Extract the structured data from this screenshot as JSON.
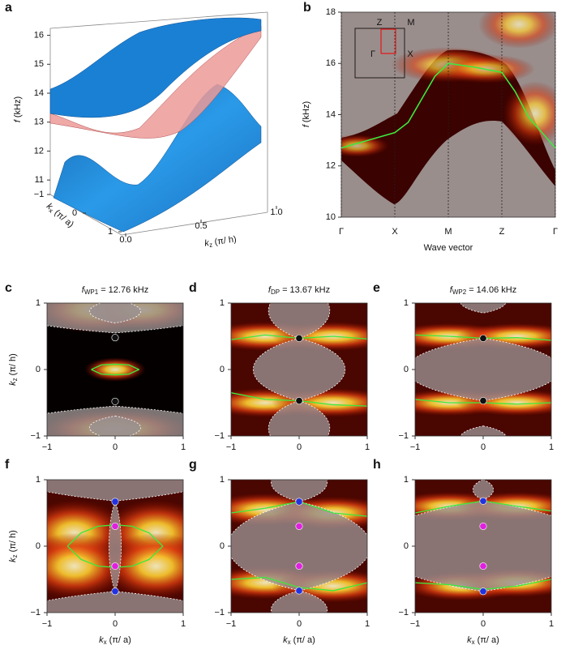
{
  "chart_data": [
    {
      "type": "surface3d",
      "panel": "a",
      "zlabel": {
        "symbol": "f",
        "text": "(kHz)"
      },
      "zlim": [
        10.5,
        16.8
      ],
      "zticks": [
        11,
        12,
        13,
        14,
        15,
        16
      ],
      "xlabel": {
        "symbol": "k",
        "subscript": "x",
        "text": "(π/ a)"
      },
      "xlim": [
        -1,
        1
      ],
      "xticks": [
        {
          "value": -1,
          "label": "−1"
        },
        0,
        1
      ],
      "ylabel": {
        "symbol": "k",
        "subscript": "z",
        "text": "(π/ h)"
      },
      "ylim": [
        0,
        1
      ],
      "yticks": [
        {
          "value": 0,
          "label": "0.0"
        },
        0.5,
        {
          "value": 1,
          "label": "1.0"
        }
      ],
      "colors": [
        "#1a80d4",
        "#ec9a98"
      ]
    },
    {
      "type": "band",
      "panel": "b",
      "ylabel": {
        "symbol": "f",
        "text": "(kHz)"
      },
      "xlabel": "Wave vector",
      "xlim": [
        0,
        4
      ],
      "xticks": [
        {
          "value": 0,
          "label": "Γ"
        },
        {
          "value": 1,
          "label": "X"
        },
        {
          "value": 2,
          "label": "M"
        },
        {
          "value": 3,
          "label": "Z"
        },
        {
          "value": 4,
          "label": "Γ"
        }
      ],
      "ylim": [
        10,
        18
      ],
      "yticks": [
        10,
        12,
        14,
        16,
        18
      ],
      "series": [
        {
          "color": "#3ee83e",
          "x": [
            0,
            0.5,
            1,
            1.25,
            1.5,
            1.75,
            2,
            2.5,
            3,
            3.25,
            3.5,
            4
          ],
          "values": [
            12.7,
            13.0,
            13.3,
            13.7,
            14.6,
            15.5,
            16.0,
            15.85,
            15.65,
            14.9,
            13.9,
            12.7
          ]
        }
      ],
      "inset_labels": [
        "Z",
        "M",
        "Γ",
        "X"
      ]
    },
    {
      "type": "heatmap",
      "panel": "c",
      "title": {
        "symbol": "f",
        "subscript": "WP1",
        "text": "= 12.76 kHz"
      },
      "ylabel": {
        "symbol": "k",
        "subscript": "z",
        "text": "(π/ h)"
      },
      "xlim": [
        -1,
        1
      ],
      "ylim": [
        -1,
        1
      ],
      "xticks": [
        {
          "value": -1,
          "label": "−1"
        },
        0,
        1
      ],
      "yticks": [
        {
          "value": -1,
          "label": "−1"
        },
        0,
        1
      ],
      "lines": [
        {
          "color": "#3ee83e",
          "x": [
            -0.35,
            -0.2,
            0,
            0.2,
            0.35,
            0.2,
            0,
            -0.2,
            -0.35
          ],
          "values": [
            0,
            0.07,
            0.08,
            0.07,
            0,
            -0.07,
            -0.08,
            -0.07,
            0
          ]
        }
      ],
      "points": [
        {
          "color": "#111111",
          "x": [
            0,
            0
          ],
          "values": [
            0.48,
            -0.48
          ]
        }
      ]
    },
    {
      "type": "heatmap",
      "panel": "d",
      "title": {
        "symbol": "f",
        "subscript": "DP",
        "text": "= 13.67 kHz"
      },
      "xlim": [
        -1,
        1
      ],
      "ylim": [
        -1,
        1
      ],
      "xticks": [
        {
          "value": -1,
          "label": "−1"
        },
        0,
        1
      ],
      "yticks": [
        {
          "value": -1,
          "label": "−1"
        },
        0,
        1
      ],
      "lines": [
        {
          "color": "#3ee83e",
          "x": [
            -1,
            -0.5,
            0,
            0.5,
            1
          ],
          "values": [
            0.45,
            0.52,
            0.47,
            0.5,
            0.46
          ]
        },
        {
          "color": "#3ee83e",
          "x": [
            -1,
            -0.5,
            0,
            0.5,
            1
          ],
          "values": [
            -0.35,
            -0.45,
            -0.47,
            -0.53,
            -0.55
          ]
        }
      ],
      "points": [
        {
          "color": "#111111",
          "x": [
            0,
            0
          ],
          "values": [
            0.47,
            -0.47
          ]
        }
      ]
    },
    {
      "type": "heatmap",
      "panel": "e",
      "title": {
        "symbol": "f",
        "subscript": "WP2",
        "text": "= 14.06 kHz"
      },
      "xlim": [
        -1,
        1
      ],
      "ylim": [
        -1,
        1
      ],
      "xticks": [
        {
          "value": -1,
          "label": "−1"
        },
        0,
        1
      ],
      "yticks": [
        {
          "value": -1,
          "label": "−1"
        },
        0,
        1
      ],
      "lines": [
        {
          "color": "#3ee83e",
          "x": [
            -1,
            -0.5,
            0,
            0.5,
            1
          ],
          "values": [
            0.52,
            0.5,
            0.47,
            0.48,
            0.44
          ]
        },
        {
          "color": "#3ee83e",
          "x": [
            -1,
            -0.5,
            0,
            0.5,
            1
          ],
          "values": [
            -0.45,
            -0.5,
            -0.5,
            -0.52,
            -0.5
          ]
        }
      ],
      "points": [
        {
          "color": "#111111",
          "x": [
            0,
            0
          ],
          "values": [
            0.47,
            -0.47
          ]
        }
      ]
    },
    {
      "type": "heatmap",
      "panel": "f",
      "ylabel": {
        "symbol": "k",
        "subscript": "z",
        "text": "(π/ h)"
      },
      "xlabel": {
        "symbol": "k",
        "subscript": "x",
        "text": "(π/ a)"
      },
      "xlim": [
        -1,
        1
      ],
      "ylim": [
        -1,
        1
      ],
      "xticks": [
        {
          "value": -1,
          "label": "−1"
        },
        0,
        1
      ],
      "yticks": [
        {
          "value": -1,
          "label": "−1"
        },
        0,
        1
      ],
      "lines": [
        {
          "color": "#3ee83e",
          "x": [
            -0.7,
            -0.5,
            -0.25,
            0,
            0.25,
            0.5,
            0.7,
            0.5,
            0.25,
            0,
            -0.25,
            -0.5,
            -0.7
          ],
          "values": [
            0,
            0.2,
            0.3,
            0.32,
            0.3,
            0.2,
            0,
            -0.2,
            -0.3,
            -0.32,
            -0.3,
            -0.2,
            0
          ]
        }
      ],
      "points": [
        {
          "color": "#2233dd",
          "x": [
            0,
            0
          ],
          "values": [
            0.67,
            -0.68
          ]
        },
        {
          "color": "#e020e0",
          "x": [
            0,
            0
          ],
          "values": [
            0.3,
            -0.3
          ]
        }
      ]
    },
    {
      "type": "heatmap",
      "panel": "g",
      "xlabel": {
        "symbol": "k",
        "subscript": "x",
        "text": "(π/ a)"
      },
      "xlim": [
        -1,
        1
      ],
      "ylim": [
        -1,
        1
      ],
      "xticks": [
        {
          "value": -1,
          "label": "−1"
        },
        0,
        1
      ],
      "yticks": [
        {
          "value": -1,
          "label": "−1"
        },
        0,
        1
      ],
      "lines": [
        {
          "color": "#3ee83e",
          "x": [
            -1,
            -0.5,
            0,
            0.5,
            1
          ],
          "values": [
            0.5,
            0.57,
            0.67,
            0.5,
            0.45
          ]
        },
        {
          "color": "#3ee83e",
          "x": [
            -1,
            -0.5,
            0,
            0.5,
            1
          ],
          "values": [
            -0.5,
            -0.47,
            -0.62,
            -0.67,
            -0.55
          ]
        }
      ],
      "points": [
        {
          "color": "#2233dd",
          "x": [
            0,
            0
          ],
          "values": [
            0.67,
            -0.67
          ]
        },
        {
          "color": "#e020e0",
          "x": [
            0,
            0
          ],
          "values": [
            0.3,
            -0.3
          ]
        }
      ]
    },
    {
      "type": "heatmap",
      "panel": "h",
      "xlabel": {
        "symbol": "k",
        "subscript": "x",
        "text": "(π/ a)"
      },
      "xlim": [
        -1,
        1
      ],
      "ylim": [
        -1,
        1
      ],
      "xticks": [
        {
          "value": -1,
          "label": "−1"
        },
        0,
        1
      ],
      "yticks": [
        {
          "value": -1,
          "label": "−1"
        },
        0,
        1
      ],
      "lines": [
        {
          "color": "#3ee83e",
          "x": [
            -1,
            -0.5,
            0,
            0.5,
            1
          ],
          "values": [
            0.5,
            0.6,
            0.68,
            0.6,
            0.53
          ]
        },
        {
          "color": "#3ee83e",
          "x": [
            -1,
            -0.5,
            0,
            0.5,
            1
          ],
          "values": [
            -0.55,
            -0.58,
            -0.65,
            -0.6,
            -0.5
          ]
        }
      ],
      "points": [
        {
          "color": "#2233dd",
          "x": [
            0,
            0
          ],
          "values": [
            0.68,
            -0.68
          ]
        },
        {
          "color": "#e020e0",
          "x": [
            0,
            0
          ],
          "values": [
            0.3,
            -0.3
          ]
        }
      ]
    }
  ]
}
